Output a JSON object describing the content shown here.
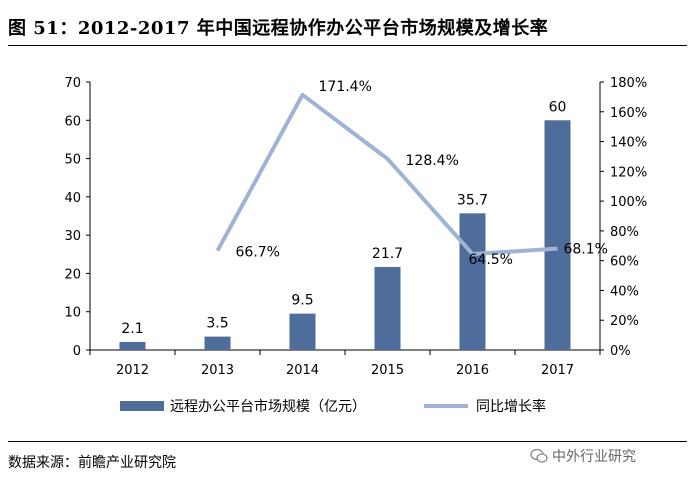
{
  "header": {
    "title": "图 51：2012-2017 年中国远程协作办公平台市场规模及增长率"
  },
  "footer": {
    "source": "数据来源：前瞻产业研究院",
    "watermark": "中外行业研究"
  },
  "colors": {
    "bar": "#4e6d9b",
    "line": "#9fb4d4"
  },
  "chart_data": {
    "type": "bar",
    "categories": [
      "2012",
      "2013",
      "2014",
      "2015",
      "2016",
      "2017"
    ],
    "series": [
      {
        "name": "远程办公平台市场规模（亿元）",
        "type": "bar",
        "axis": "left",
        "values": [
          2.1,
          3.5,
          9.5,
          21.7,
          35.7,
          60
        ],
        "labels": [
          "2.1",
          "3.5",
          "9.5",
          "21.7",
          "35.7",
          "60"
        ]
      },
      {
        "name": "同比增长率",
        "type": "line",
        "axis": "right",
        "values": [
          null,
          66.7,
          171.4,
          128.4,
          64.5,
          68.1
        ],
        "labels": [
          "",
          "66.7%",
          "171.4%",
          "128.4%",
          "64.5%",
          "68.1%"
        ]
      }
    ],
    "y_left": {
      "min": 0,
      "max": 70,
      "ticks": [
        "0",
        "10",
        "20",
        "30",
        "40",
        "50",
        "60",
        "70"
      ]
    },
    "y_right": {
      "min": 0,
      "max": 180,
      "ticks": [
        "0%",
        "20%",
        "40%",
        "60%",
        "80%",
        "100%",
        "120%",
        "140%",
        "160%",
        "180%"
      ]
    },
    "grid": false,
    "legend": "bottom"
  }
}
